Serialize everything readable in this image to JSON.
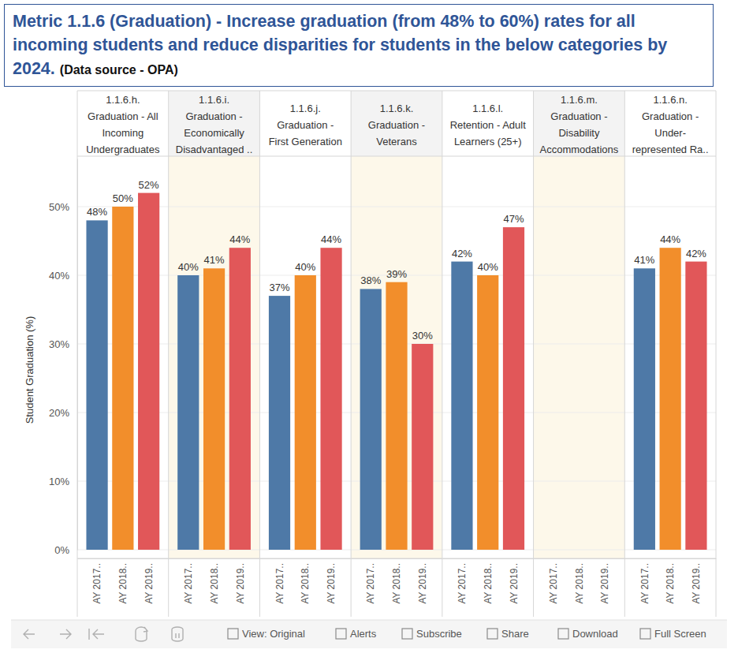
{
  "chart_data": {
    "type": "bar",
    "title": "Metric 1.1.6 (Graduation) - Increase graduation (from 48% to 60%) rates for all incoming students and reduce disparities for students in the below categories by 2024.",
    "subtitle": "(Data source - OPA)",
    "ylabel": "Student Graduation (%)",
    "categories": [
      "1.1.6.h. Graduation - All Incoming Undergraduates",
      "1.1.6.i. Graduation - Economically Disadvantaged ..",
      "1.1.6.j. Graduation - First Generation",
      "1.1.6.k. Graduation - Veterans",
      "1.1.6.l. Retention - Adult Learners (25+)",
      "1.1.6.m. Graduation - Disability Accommodations",
      "1.1.6.n. Graduation - Under-represented Ra.."
    ],
    "series": [
      {
        "name": "AY 2017..",
        "color": "#4e79a7",
        "values": [
          48,
          40,
          37,
          38,
          42,
          null,
          41
        ],
        "value_labels": [
          "48%",
          "40%",
          "37%",
          "38%",
          "42%",
          null,
          "41%"
        ]
      },
      {
        "name": "AY 2018..",
        "color": "#f28e2b",
        "values": [
          50,
          41,
          40,
          39,
          40,
          null,
          44
        ],
        "value_labels": [
          "50%",
          "41%",
          "40%",
          "39%",
          "40%",
          null,
          "44%"
        ]
      },
      {
        "name": "AY 2019..",
        "color": "#e15759",
        "values": [
          52,
          44,
          44,
          30,
          47,
          null,
          42
        ],
        "value_labels": [
          "52%",
          "44%",
          "44%",
          "30%",
          "47%",
          null,
          "42%"
        ]
      }
    ],
    "ylim": [
      0,
      57
    ],
    "yticks": [
      {
        "value": 0,
        "label": "0%"
      },
      {
        "value": 10,
        "label": "10%"
      },
      {
        "value": 20,
        "label": "20%"
      },
      {
        "value": 30,
        "label": "30%"
      },
      {
        "value": 40,
        "label": "40%"
      },
      {
        "value": 50,
        "label": "50%"
      }
    ],
    "grid": true,
    "data_labels": true
  },
  "toolbar": {
    "items": [
      "View: Original",
      "Alerts",
      "Subscribe",
      "Share",
      "Download",
      "Full Screen"
    ]
  }
}
